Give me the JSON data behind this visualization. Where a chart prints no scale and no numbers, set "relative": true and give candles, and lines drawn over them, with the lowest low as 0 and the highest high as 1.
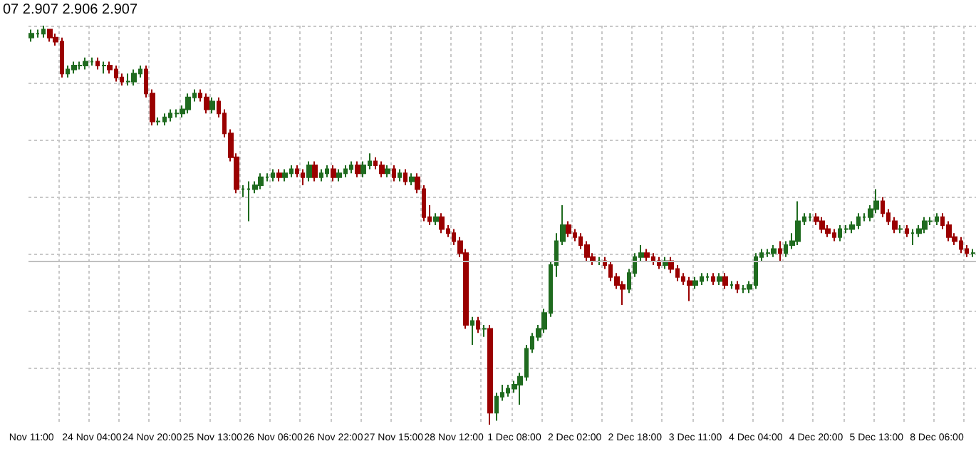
{
  "chart_data": {
    "type": "candlestick",
    "relative": true,
    "grid": true,
    "tick_labels": "x",
    "annotations": [
      "07 2.907 2.906 2.907"
    ],
    "ref_lines": [
      {
        "axis": "y",
        "value": 0.41,
        "color": "#c0c0c0"
      }
    ],
    "categories": [
      "Nov 11:00",
      null,
      null,
      null,
      null,
      null,
      null,
      null,
      null,
      null,
      "24 Nov 04:00",
      null,
      null,
      null,
      null,
      null,
      null,
      null,
      null,
      null,
      "24 Nov 20:00",
      null,
      null,
      null,
      null,
      null,
      null,
      null,
      null,
      null,
      "25 Nov 13:00",
      null,
      null,
      null,
      null,
      null,
      null,
      null,
      null,
      null,
      "26 Nov 06:00",
      null,
      null,
      null,
      null,
      null,
      null,
      null,
      null,
      null,
      "26 Nov 22:00",
      null,
      null,
      null,
      null,
      null,
      null,
      null,
      null,
      null,
      "27 Nov 15:00",
      null,
      null,
      null,
      null,
      null,
      null,
      null,
      null,
      null,
      "28 Nov 12:00",
      null,
      null,
      null,
      null,
      null,
      null,
      null,
      null,
      null,
      "1 Dec 08:00",
      null,
      null,
      null,
      null,
      null,
      null,
      null,
      null,
      null,
      "2 Dec 02:00",
      null,
      null,
      null,
      null,
      null,
      null,
      null,
      null,
      null,
      "2 Dec 18:00",
      null,
      null,
      null,
      null,
      null,
      null,
      null,
      null,
      null,
      "3 Dec 11:00",
      null,
      null,
      null,
      null,
      null,
      null,
      null,
      null,
      null,
      "4 Dec 04:00",
      null,
      null,
      null,
      null,
      null,
      null,
      null,
      null,
      null,
      "4 Dec 20:00",
      null,
      null,
      null,
      null,
      null,
      null,
      null,
      null,
      null,
      "5 Dec 13:00",
      null,
      null,
      null,
      null,
      null,
      null,
      null,
      null,
      null,
      "8 Dec 06:00",
      null,
      null,
      null,
      null,
      null,
      null
    ],
    "ohlc": [
      [
        0.97,
        0.99,
        0.96,
        0.98
      ],
      [
        0.98,
        0.99,
        0.97,
        0.98
      ],
      [
        0.98,
        1.0,
        0.97,
        0.99
      ],
      [
        0.99,
        0.99,
        0.96,
        0.97
      ],
      [
        0.97,
        0.98,
        0.95,
        0.96
      ],
      [
        0.96,
        0.97,
        0.87,
        0.88
      ],
      [
        0.88,
        0.9,
        0.87,
        0.89
      ],
      [
        0.89,
        0.91,
        0.88,
        0.9
      ],
      [
        0.9,
        0.91,
        0.89,
        0.9
      ],
      [
        0.9,
        0.92,
        0.89,
        0.91
      ],
      [
        0.91,
        0.92,
        0.9,
        0.91
      ],
      [
        0.91,
        0.92,
        0.89,
        0.9
      ],
      [
        0.9,
        0.91,
        0.88,
        0.9
      ],
      [
        0.9,
        0.91,
        0.88,
        0.89
      ],
      [
        0.89,
        0.9,
        0.86,
        0.87
      ],
      [
        0.87,
        0.88,
        0.85,
        0.86
      ],
      [
        0.86,
        0.88,
        0.85,
        0.86
      ],
      [
        0.86,
        0.89,
        0.85,
        0.88
      ],
      [
        0.88,
        0.9,
        0.87,
        0.89
      ],
      [
        0.89,
        0.9,
        0.82,
        0.83
      ],
      [
        0.83,
        0.84,
        0.75,
        0.76
      ],
      [
        0.76,
        0.77,
        0.75,
        0.76
      ],
      [
        0.76,
        0.78,
        0.75,
        0.77
      ],
      [
        0.77,
        0.79,
        0.76,
        0.78
      ],
      [
        0.78,
        0.79,
        0.77,
        0.78
      ],
      [
        0.78,
        0.8,
        0.77,
        0.79
      ],
      [
        0.79,
        0.83,
        0.78,
        0.82
      ],
      [
        0.82,
        0.84,
        0.81,
        0.83
      ],
      [
        0.83,
        0.84,
        0.81,
        0.82
      ],
      [
        0.82,
        0.83,
        0.78,
        0.79
      ],
      [
        0.79,
        0.82,
        0.78,
        0.81
      ],
      [
        0.81,
        0.82,
        0.77,
        0.78
      ],
      [
        0.78,
        0.79,
        0.72,
        0.73
      ],
      [
        0.73,
        0.74,
        0.66,
        0.67
      ],
      [
        0.67,
        0.68,
        0.58,
        0.59
      ],
      [
        0.59,
        0.6,
        0.57,
        0.59
      ],
      [
        0.59,
        0.61,
        0.51,
        0.59
      ],
      [
        0.59,
        0.61,
        0.58,
        0.6
      ],
      [
        0.6,
        0.63,
        0.59,
        0.62
      ],
      [
        0.62,
        0.63,
        0.61,
        0.62
      ],
      [
        0.62,
        0.64,
        0.61,
        0.63
      ],
      [
        0.63,
        0.64,
        0.61,
        0.62
      ],
      [
        0.62,
        0.64,
        0.61,
        0.63
      ],
      [
        0.63,
        0.65,
        0.62,
        0.64
      ],
      [
        0.64,
        0.65,
        0.62,
        0.63
      ],
      [
        0.63,
        0.64,
        0.6,
        0.62
      ],
      [
        0.62,
        0.66,
        0.61,
        0.65
      ],
      [
        0.65,
        0.66,
        0.61,
        0.62
      ],
      [
        0.62,
        0.64,
        0.61,
        0.63
      ],
      [
        0.63,
        0.65,
        0.62,
        0.64
      ],
      [
        0.64,
        0.65,
        0.61,
        0.62
      ],
      [
        0.62,
        0.64,
        0.61,
        0.63
      ],
      [
        0.63,
        0.65,
        0.62,
        0.64
      ],
      [
        0.64,
        0.66,
        0.63,
        0.65
      ],
      [
        0.65,
        0.66,
        0.62,
        0.63
      ],
      [
        0.63,
        0.66,
        0.62,
        0.65
      ],
      [
        0.65,
        0.68,
        0.64,
        0.66
      ],
      [
        0.66,
        0.67,
        0.64,
        0.65
      ],
      [
        0.65,
        0.66,
        0.62,
        0.63
      ],
      [
        0.63,
        0.65,
        0.62,
        0.64
      ],
      [
        0.64,
        0.65,
        0.61,
        0.62
      ],
      [
        0.62,
        0.64,
        0.61,
        0.63
      ],
      [
        0.63,
        0.64,
        0.6,
        0.61
      ],
      [
        0.61,
        0.63,
        0.6,
        0.62
      ],
      [
        0.62,
        0.63,
        0.58,
        0.59
      ],
      [
        0.59,
        0.6,
        0.51,
        0.52
      ],
      [
        0.52,
        0.55,
        0.5,
        0.51
      ],
      [
        0.51,
        0.53,
        0.5,
        0.52
      ],
      [
        0.52,
        0.53,
        0.48,
        0.49
      ],
      [
        0.49,
        0.5,
        0.47,
        0.48
      ],
      [
        0.48,
        0.49,
        0.45,
        0.46
      ],
      [
        0.46,
        0.47,
        0.42,
        0.43
      ],
      [
        0.43,
        0.44,
        0.24,
        0.25
      ],
      [
        0.25,
        0.27,
        0.2,
        0.26
      ],
      [
        0.26,
        0.27,
        0.23,
        0.24
      ],
      [
        0.24,
        0.25,
        0.22,
        0.24
      ],
      [
        0.24,
        0.25,
        0.0,
        0.03
      ],
      [
        0.03,
        0.08,
        0.01,
        0.07
      ],
      [
        0.07,
        0.1,
        0.06,
        0.08
      ],
      [
        0.08,
        0.1,
        0.07,
        0.09
      ],
      [
        0.09,
        0.11,
        0.08,
        0.1
      ],
      [
        0.1,
        0.13,
        0.05,
        0.12
      ],
      [
        0.12,
        0.2,
        0.11,
        0.19
      ],
      [
        0.19,
        0.23,
        0.18,
        0.22
      ],
      [
        0.22,
        0.25,
        0.21,
        0.24
      ],
      [
        0.24,
        0.29,
        0.23,
        0.28
      ],
      [
        0.28,
        0.41,
        0.27,
        0.4
      ],
      [
        0.4,
        0.48,
        0.37,
        0.46
      ],
      [
        0.46,
        0.55,
        0.45,
        0.5
      ],
      [
        0.5,
        0.51,
        0.47,
        0.48
      ],
      [
        0.48,
        0.49,
        0.46,
        0.47
      ],
      [
        0.47,
        0.48,
        0.44,
        0.45
      ],
      [
        0.45,
        0.46,
        0.41,
        0.42
      ],
      [
        0.42,
        0.43,
        0.4,
        0.41
      ],
      [
        0.41,
        0.42,
        0.4,
        0.41
      ],
      [
        0.41,
        0.42,
        0.39,
        0.4
      ],
      [
        0.4,
        0.41,
        0.36,
        0.37
      ],
      [
        0.37,
        0.38,
        0.34,
        0.35
      ],
      [
        0.35,
        0.36,
        0.3,
        0.34
      ],
      [
        0.34,
        0.39,
        0.33,
        0.38
      ],
      [
        0.38,
        0.43,
        0.37,
        0.42
      ],
      [
        0.42,
        0.45,
        0.41,
        0.43
      ],
      [
        0.43,
        0.44,
        0.41,
        0.42
      ],
      [
        0.42,
        0.43,
        0.4,
        0.41
      ],
      [
        0.41,
        0.42,
        0.39,
        0.4
      ],
      [
        0.4,
        0.42,
        0.39,
        0.41
      ],
      [
        0.41,
        0.42,
        0.38,
        0.39
      ],
      [
        0.39,
        0.4,
        0.36,
        0.37
      ],
      [
        0.37,
        0.38,
        0.35,
        0.36
      ],
      [
        0.36,
        0.37,
        0.31,
        0.35
      ],
      [
        0.35,
        0.37,
        0.34,
        0.36
      ],
      [
        0.36,
        0.38,
        0.35,
        0.37
      ],
      [
        0.37,
        0.38,
        0.36,
        0.37
      ],
      [
        0.37,
        0.38,
        0.35,
        0.36
      ],
      [
        0.36,
        0.38,
        0.35,
        0.37
      ],
      [
        0.37,
        0.38,
        0.34,
        0.35
      ],
      [
        0.35,
        0.36,
        0.34,
        0.35
      ],
      [
        0.35,
        0.36,
        0.33,
        0.34
      ],
      [
        0.34,
        0.35,
        0.33,
        0.34
      ],
      [
        0.34,
        0.36,
        0.33,
        0.35
      ],
      [
        0.35,
        0.43,
        0.34,
        0.42
      ],
      [
        0.42,
        0.44,
        0.41,
        0.43
      ],
      [
        0.43,
        0.44,
        0.42,
        0.43
      ],
      [
        0.43,
        0.45,
        0.42,
        0.44
      ],
      [
        0.44,
        0.46,
        0.41,
        0.43
      ],
      [
        0.43,
        0.46,
        0.42,
        0.45
      ],
      [
        0.45,
        0.48,
        0.44,
        0.46
      ],
      [
        0.46,
        0.56,
        0.45,
        0.51
      ],
      [
        0.51,
        0.53,
        0.5,
        0.52
      ],
      [
        0.52,
        0.53,
        0.51,
        0.52
      ],
      [
        0.52,
        0.53,
        0.5,
        0.51
      ],
      [
        0.51,
        0.52,
        0.48,
        0.49
      ],
      [
        0.49,
        0.5,
        0.47,
        0.48
      ],
      [
        0.48,
        0.49,
        0.46,
        0.47
      ],
      [
        0.47,
        0.5,
        0.46,
        0.49
      ],
      [
        0.49,
        0.5,
        0.48,
        0.49
      ],
      [
        0.49,
        0.51,
        0.48,
        0.5
      ],
      [
        0.5,
        0.53,
        0.49,
        0.52
      ],
      [
        0.52,
        0.53,
        0.51,
        0.52
      ],
      [
        0.52,
        0.55,
        0.51,
        0.54
      ],
      [
        0.54,
        0.59,
        0.53,
        0.56
      ],
      [
        0.56,
        0.57,
        0.52,
        0.53
      ],
      [
        0.53,
        0.54,
        0.5,
        0.51
      ],
      [
        0.51,
        0.52,
        0.48,
        0.49
      ],
      [
        0.49,
        0.5,
        0.48,
        0.49
      ],
      [
        0.49,
        0.5,
        0.47,
        0.48
      ],
      [
        0.48,
        0.49,
        0.45,
        0.48
      ],
      [
        0.48,
        0.5,
        0.47,
        0.49
      ],
      [
        0.49,
        0.52,
        0.48,
        0.51
      ],
      [
        0.51,
        0.52,
        0.5,
        0.51
      ],
      [
        0.51,
        0.53,
        0.5,
        0.52
      ],
      [
        0.52,
        0.53,
        0.49,
        0.5
      ],
      [
        0.5,
        0.51,
        0.46,
        0.47
      ],
      [
        0.47,
        0.48,
        0.45,
        0.46
      ],
      [
        0.46,
        0.47,
        0.43,
        0.44
      ],
      [
        0.44,
        0.45,
        0.42,
        0.43
      ],
      [
        0.43,
        0.44,
        0.42,
        0.43
      ]
    ]
  }
}
